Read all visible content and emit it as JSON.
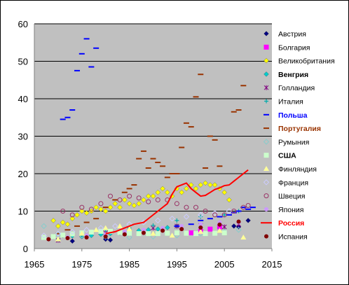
{
  "chart_data": {
    "type": "scatter",
    "title": "",
    "xlabel": "",
    "ylabel": "",
    "xlim": [
      1965,
      2015
    ],
    "ylim": [
      0,
      60
    ],
    "x_ticks": [
      "1965",
      "1975",
      "1985",
      "1995",
      "2005",
      "2015"
    ],
    "y_ticks": [
      "0",
      "10",
      "20",
      "30",
      "40",
      "50",
      "60"
    ],
    "grid": "horizontal",
    "plot_background": "#c0c0c0",
    "legend_position": "right",
    "series": [
      {
        "name": "Австрия",
        "marker": "diamond",
        "color": "#000080",
        "bold": false,
        "label_color": "#000000",
        "points": [
          [
            1973,
            2
          ],
          [
            1980,
            2.5
          ],
          [
            1981,
            2.3
          ],
          [
            2007,
            6.0
          ],
          [
            2008,
            5.8
          ],
          [
            2010,
            7.5
          ]
        ]
      },
      {
        "name": "Болгария",
        "marker": "square",
        "color": "#ff00ff",
        "bold": false,
        "label_color": "#000000",
        "points": [
          [
            1998,
            4.2
          ],
          [
            2000,
            4.6
          ],
          [
            2002,
            5.2
          ],
          [
            2004,
            5.8
          ]
        ]
      },
      {
        "name": "Великобритания",
        "marker": "diamond",
        "color": "#ffff00",
        "bold": false,
        "label_color": "#000000",
        "points": [
          [
            1969,
            7.5
          ],
          [
            1970,
            6
          ],
          [
            1971,
            7
          ],
          [
            1972,
            6.5
          ],
          [
            1973,
            8
          ],
          [
            1974,
            9
          ],
          [
            1975,
            10
          ],
          [
            1976,
            9.5
          ],
          [
            1977,
            10
          ],
          [
            1978,
            11
          ],
          [
            1979,
            10.5
          ],
          [
            1980,
            10
          ],
          [
            1981,
            11
          ],
          [
            1982,
            12
          ],
          [
            1983,
            11
          ],
          [
            1984,
            13
          ],
          [
            1985,
            12
          ],
          [
            1986,
            11.5
          ],
          [
            1987,
            12
          ],
          [
            1988,
            13
          ],
          [
            1989,
            14
          ],
          [
            1990,
            14
          ],
          [
            1991,
            15
          ],
          [
            1992,
            16
          ],
          [
            1993,
            15
          ],
          [
            1994,
            14
          ],
          [
            1995,
            16
          ],
          [
            1996,
            15
          ],
          [
            1997,
            16
          ],
          [
            1998,
            17
          ],
          [
            1999,
            16
          ],
          [
            2000,
            17
          ],
          [
            2001,
            17.5
          ],
          [
            2002,
            17
          ],
          [
            2003,
            17
          ],
          [
            2004,
            16
          ],
          [
            2005,
            15
          ],
          [
            2006,
            13
          ]
        ]
      },
      {
        "name": "Венгрия",
        "marker": "diamond",
        "color": "#00cccc",
        "bold": true,
        "label_color": "#000000",
        "points": [
          [
            1967,
            3
          ],
          [
            1969,
            3.2
          ],
          [
            1971,
            3.5
          ],
          [
            1973,
            3.4
          ],
          [
            1975,
            3.2
          ],
          [
            1977,
            3.5
          ],
          [
            1979,
            3.8
          ],
          [
            1981,
            4
          ],
          [
            1983,
            4.2
          ],
          [
            1985,
            4.5
          ],
          [
            1987,
            4.8
          ],
          [
            1989,
            5
          ],
          [
            1991,
            5.2
          ],
          [
            1993,
            5.6
          ],
          [
            1995,
            6
          ]
        ]
      },
      {
        "name": "Голландия",
        "marker": "star",
        "color": "#800080",
        "bold": false,
        "label_color": "#000000",
        "points": [
          [
            1970,
            2.2
          ],
          [
            1975,
            3.8
          ],
          [
            1980,
            4.2
          ],
          [
            1985,
            4.5
          ],
          [
            1990,
            5.5
          ],
          [
            1995,
            6.0
          ],
          [
            2000,
            6.2
          ],
          [
            2005,
            5.8
          ],
          [
            2008,
            6.5
          ]
        ]
      },
      {
        "name": "Италия",
        "marker": "plus",
        "color": "#00aaaa",
        "bold": false,
        "label_color": "#000000",
        "points": [
          [
            1970,
            2.4
          ],
          [
            1975,
            3.5
          ],
          [
            1980,
            5
          ],
          [
            1985,
            5.5
          ],
          [
            1990,
            6.2
          ],
          [
            1995,
            7.5
          ],
          [
            2000,
            8.5
          ],
          [
            2005,
            9
          ],
          [
            2008,
            10
          ]
        ]
      },
      {
        "name": "Польша",
        "marker": "dash",
        "color": "#0000ff",
        "bold": true,
        "label_color": "#0000ff",
        "points": [
          [
            1971,
            34.5
          ],
          [
            1972,
            35
          ],
          [
            1973,
            37
          ],
          [
            1974,
            47.5
          ],
          [
            1975,
            52
          ],
          [
            1976,
            56
          ],
          [
            1977,
            48.5
          ],
          [
            1978,
            53.5
          ],
          [
            1995,
            6
          ],
          [
            1998,
            6.5
          ],
          [
            2000,
            7.5
          ],
          [
            2002,
            8
          ],
          [
            2004,
            8.5
          ],
          [
            2006,
            9
          ],
          [
            2007,
            9.6
          ],
          [
            2008,
            10
          ],
          [
            2009,
            11
          ],
          [
            2010,
            10.5
          ],
          [
            2011,
            11
          ]
        ]
      },
      {
        "name": "Португалия",
        "marker": "dash",
        "color": "#993300",
        "bold": true,
        "label_color": "#993300",
        "points": [
          [
            1970,
            4
          ],
          [
            1972,
            5
          ],
          [
            1974,
            6
          ],
          [
            1976,
            7
          ],
          [
            1978,
            8
          ],
          [
            1980,
            11
          ],
          [
            1982,
            13
          ],
          [
            1984,
            15
          ],
          [
            1985,
            16
          ],
          [
            1986,
            17
          ],
          [
            1987,
            24
          ],
          [
            1988,
            26
          ],
          [
            1989,
            21.5
          ],
          [
            1990,
            24
          ],
          [
            1991,
            23
          ],
          [
            1992,
            22
          ],
          [
            1993,
            19
          ],
          [
            1994,
            20
          ],
          [
            1995,
            20
          ],
          [
            1996,
            27
          ],
          [
            1997,
            33.5
          ],
          [
            1998,
            32.5
          ],
          [
            1999,
            40.5
          ],
          [
            2000,
            46.5
          ],
          [
            2001,
            21.5
          ],
          [
            2002,
            30
          ],
          [
            2003,
            29
          ],
          [
            2004,
            22
          ],
          [
            2007,
            36.5
          ],
          [
            2008,
            37
          ],
          [
            2009,
            43.5
          ]
        ]
      },
      {
        "name": "Румыния",
        "marker": "diamond-open",
        "color": "#88cccc",
        "bold": false,
        "label_color": "#000000",
        "points": [
          [
            1967,
            6
          ],
          [
            1970,
            3.8
          ],
          [
            1975,
            3.5
          ],
          [
            1980,
            3.2
          ],
          [
            1985,
            3
          ],
          [
            1990,
            3.2
          ],
          [
            1995,
            3.5
          ],
          [
            2000,
            4
          ],
          [
            2005,
            4.5
          ],
          [
            2008,
            5
          ]
        ]
      },
      {
        "name": "США",
        "marker": "square",
        "color": "#ccffcc",
        "bold": true,
        "label_color": "#000000",
        "points": [
          [
            1967,
            3
          ],
          [
            1969,
            3.2
          ],
          [
            1971,
            3.6
          ],
          [
            1973,
            3.9
          ],
          [
            1975,
            4.2
          ],
          [
            1977,
            4.4
          ],
          [
            1979,
            4.6
          ],
          [
            1981,
            4.6
          ],
          [
            1983,
            4.3
          ],
          [
            1985,
            4.1
          ],
          [
            1987,
            4
          ],
          [
            1989,
            4
          ],
          [
            1991,
            4
          ],
          [
            1993,
            4.1
          ],
          [
            1995,
            4.2
          ],
          [
            1997,
            4.1
          ],
          [
            1999,
            4
          ],
          [
            2001,
            4
          ],
          [
            2003,
            4.1
          ],
          [
            2005,
            4.2
          ]
        ]
      },
      {
        "name": "Финляндия",
        "marker": "triangle",
        "color": "#ffff99",
        "bold": false,
        "label_color": "#000000",
        "points": [
          [
            1970,
            2.5
          ],
          [
            1975,
            4
          ],
          [
            1978,
            5
          ],
          [
            1980,
            5.5
          ],
          [
            1983,
            6
          ],
          [
            1985,
            5.2
          ],
          [
            1990,
            4
          ],
          [
            1994,
            3.5
          ],
          [
            2000,
            4.5
          ],
          [
            2004,
            4.8
          ],
          [
            2009,
            3
          ]
        ]
      },
      {
        "name": "Франция",
        "marker": "diamond-open",
        "color": "#ccccff",
        "bold": false,
        "label_color": "#000000",
        "points": [
          [
            1967,
            3.5
          ],
          [
            1970,
            4
          ],
          [
            1973,
            4.5
          ],
          [
            1976,
            5
          ],
          [
            1979,
            5.5
          ],
          [
            1982,
            6
          ],
          [
            1985,
            6.5
          ],
          [
            1988,
            7
          ],
          [
            1991,
            7.5
          ],
          [
            1994,
            8
          ],
          [
            1997,
            8.5
          ],
          [
            2000,
            9
          ],
          [
            2003,
            9.5
          ],
          [
            2006,
            10
          ]
        ]
      },
      {
        "name": "Швеция",
        "marker": "circle-open",
        "color": "#993366",
        "bold": false,
        "label_color": "#000000",
        "points": [
          [
            1971,
            10
          ],
          [
            1973,
            9
          ],
          [
            1975,
            11
          ],
          [
            1977,
            10.5
          ],
          [
            1979,
            12
          ],
          [
            1981,
            14
          ],
          [
            1983,
            13
          ],
          [
            1985,
            14
          ],
          [
            1987,
            13.5
          ],
          [
            1989,
            12.5
          ],
          [
            1991,
            13
          ],
          [
            1993,
            13
          ],
          [
            1995,
            12
          ],
          [
            1997,
            11
          ],
          [
            1999,
            11
          ],
          [
            2001,
            10
          ],
          [
            2003,
            9
          ],
          [
            2005,
            9
          ],
          [
            2007,
            10
          ],
          [
            2009,
            11
          ],
          [
            2010,
            11.5
          ]
        ]
      },
      {
        "name": "Япония",
        "marker": "circle",
        "color": "#cc99ff",
        "bold": false,
        "label_color": "#000000",
        "points": [
          [
            1968,
            2.5
          ],
          [
            1972,
            3
          ],
          [
            1976,
            3.5
          ],
          [
            1980,
            3.8
          ],
          [
            1984,
            4.5
          ],
          [
            1988,
            5
          ],
          [
            1992,
            5.5
          ],
          [
            1996,
            6
          ],
          [
            2000,
            6.5
          ],
          [
            2004,
            7
          ],
          [
            2008,
            7
          ]
        ]
      },
      {
        "name": "Россия",
        "marker": "line",
        "color": "#ff0000",
        "bold": true,
        "label_color": "#ff0000",
        "points": [
          [
            1980,
            4
          ],
          [
            1982,
            4.5
          ],
          [
            1984,
            5.5
          ],
          [
            1986,
            6.5
          ],
          [
            1988,
            7
          ],
          [
            1990,
            9
          ],
          [
            1991,
            10
          ],
          [
            1992,
            11
          ],
          [
            1993,
            12
          ],
          [
            1994,
            14.5
          ],
          [
            1995,
            16.5
          ],
          [
            1996,
            17
          ],
          [
            1997,
            17.5
          ],
          [
            1998,
            16
          ],
          [
            1999,
            15
          ],
          [
            2000,
            14
          ],
          [
            2001,
            14.2
          ],
          [
            2002,
            15
          ],
          [
            2003,
            15.8
          ],
          [
            2004,
            16.2
          ],
          [
            2005,
            16.8
          ],
          [
            2006,
            17
          ],
          [
            2007,
            18
          ],
          [
            2008,
            19
          ],
          [
            2009,
            20
          ],
          [
            2010,
            21
          ]
        ]
      },
      {
        "name": "Испания",
        "marker": "circle",
        "color": "#800000",
        "bold": false,
        "label_color": "#000000",
        "points": [
          [
            1968,
            2.5
          ],
          [
            1972,
            2.8
          ],
          [
            1976,
            3
          ],
          [
            1980,
            3.2
          ],
          [
            1984,
            3.8
          ],
          [
            1988,
            4.2
          ],
          [
            1992,
            4.8
          ],
          [
            1996,
            5.2
          ],
          [
            2000,
            5.6
          ],
          [
            2004,
            6.4
          ],
          [
            2008,
            7.2
          ]
        ]
      }
    ]
  }
}
